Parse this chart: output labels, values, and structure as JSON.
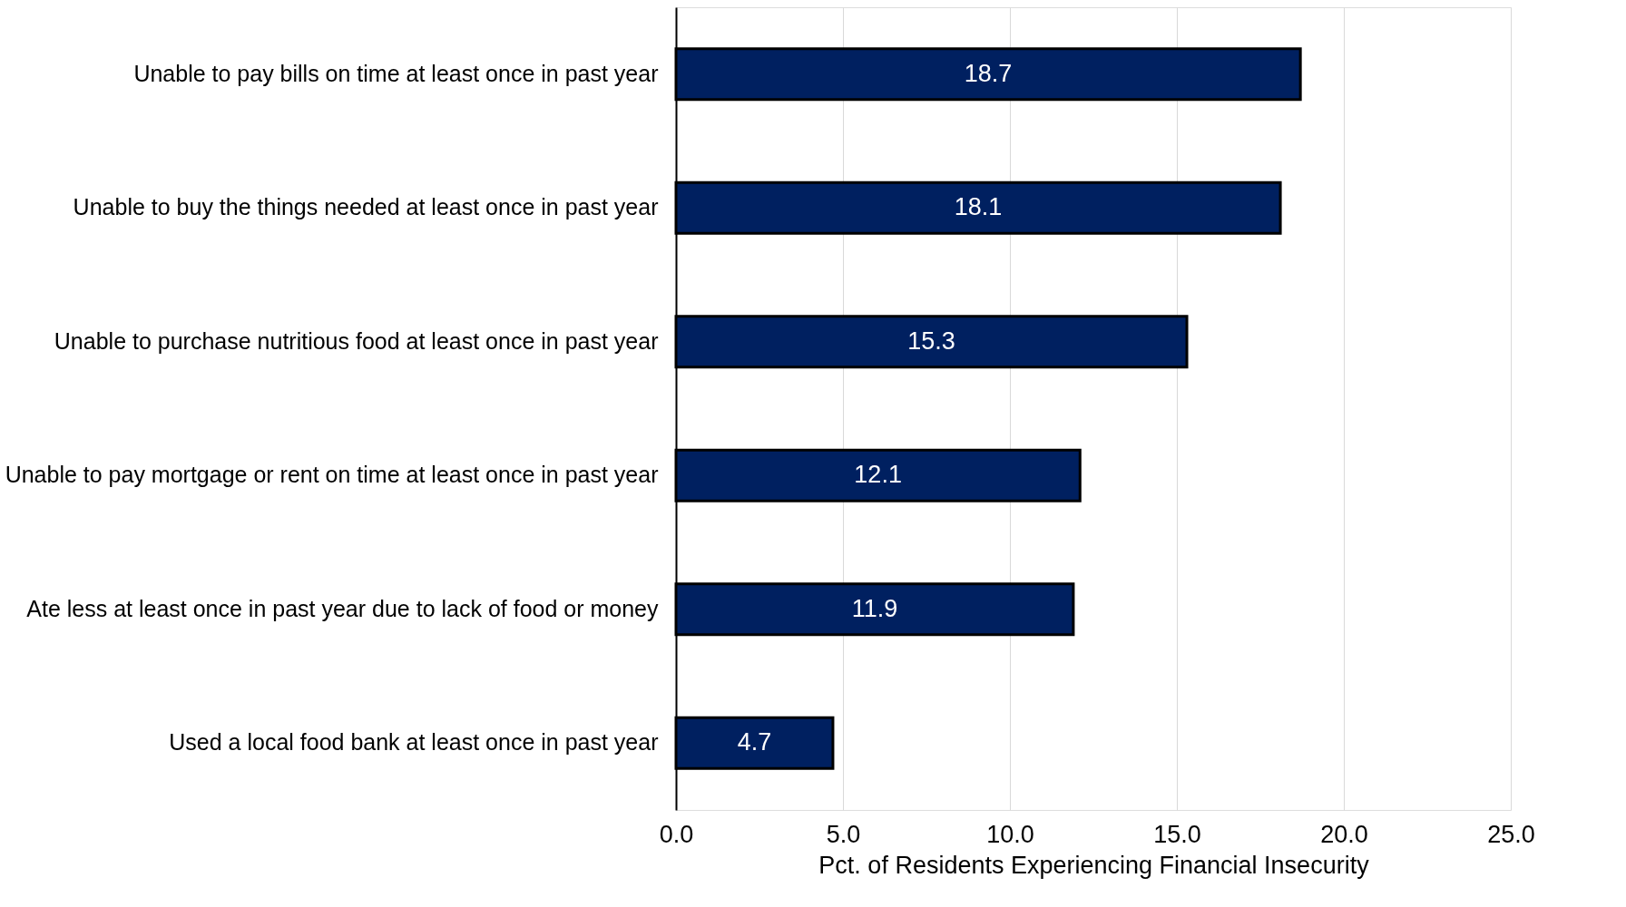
{
  "chart_data": {
    "type": "bar",
    "orientation": "horizontal",
    "xlabel": "Pct. of Residents Experiencing Financial Insecurity",
    "categories": [
      "Unable to pay  bills on time at least once in past year",
      "Unable to buy the things needed at least once in past year",
      "Unable to purchase nutritious food at least once in past year",
      "Unable to pay mortgage or rent on time at least once in past year",
      "Ate less at least once in past year due to lack of food or money",
      "Used a local food bank at least once in past year"
    ],
    "values": [
      18.7,
      18.1,
      15.3,
      12.1,
      11.9,
      4.7
    ],
    "color": "#002060",
    "xlim": [
      0,
      25
    ],
    "xticks": [
      {
        "value": 0,
        "label": "0.0"
      },
      {
        "value": 5,
        "label": "5.0"
      },
      {
        "value": 10,
        "label": "10.0"
      },
      {
        "value": 15,
        "label": "15.0"
      },
      {
        "value": 20,
        "label": "20.0"
      },
      {
        "value": 25,
        "label": "25.0"
      }
    ],
    "grid": "x",
    "data_labels": true
  }
}
